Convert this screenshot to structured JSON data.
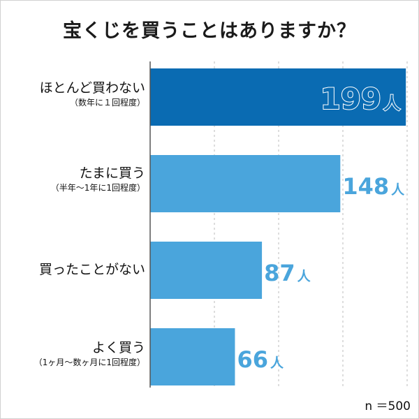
{
  "title": "宝くじを買うことはありますか？",
  "n_label": "n ＝500",
  "colors": {
    "highlight": "#0a6bb2",
    "bar": "#4aa5dc",
    "value_text": "#4aa5dc",
    "axis": "#555555",
    "grid": "#bbbbbb"
  },
  "chart_data": {
    "type": "bar",
    "orientation": "horizontal",
    "title": "宝くじを買うことはありますか？",
    "categories": [
      {
        "main": "ほとんど買わない",
        "sub": "（数年に１回程度）"
      },
      {
        "main": "たまに買う",
        "sub": "（半年〜1年に1回程度）"
      },
      {
        "main": "買ったことがない",
        "sub": ""
      },
      {
        "main": "よく買う",
        "sub": "（1ヶ月〜数ヶ月に1回程度）"
      }
    ],
    "values": [
      199,
      148,
      87,
      66
    ],
    "value_labels": [
      "199",
      "148",
      "87",
      "66"
    ],
    "unit": "人",
    "xlim": [
      0,
      200
    ],
    "grid": true,
    "highlight_index": 0
  }
}
